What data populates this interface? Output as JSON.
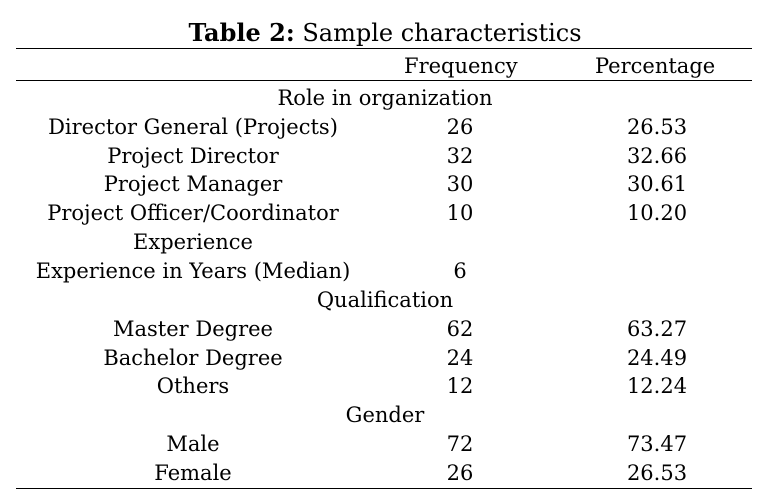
{
  "table": {
    "caption_bold": "Table 2:",
    "caption_rest": " Sample characteristics",
    "headers": {
      "frequency": "Frequency",
      "percentage": "Percentage"
    },
    "sections": [
      {
        "title": "Role in organization",
        "rows": [
          {
            "label": "Director General (Projects)",
            "frequency": "26",
            "percentage": "26.53"
          },
          {
            "label": "Project Director",
            "frequency": "32",
            "percentage": "32.66"
          },
          {
            "label": "Project Manager",
            "frequency": "30",
            "percentage": "30.61"
          },
          {
            "label": "Project Officer/Coordinator",
            "frequency": "10",
            "percentage": "10.20"
          }
        ]
      },
      {
        "title": "Experience",
        "rows": [
          {
            "label": "Experience in Years (Median)",
            "frequency": "6",
            "percentage": ""
          }
        ]
      },
      {
        "title": "Qualification",
        "rows": [
          {
            "label": "Master Degree",
            "frequency": "62",
            "percentage": "63.27"
          },
          {
            "label": "Bachelor Degree",
            "frequency": "24",
            "percentage": "24.49"
          },
          {
            "label": "Others",
            "frequency": "12",
            "percentage": "12.24"
          }
        ]
      },
      {
        "title": "Gender",
        "rows": [
          {
            "label": "Male",
            "frequency": "72",
            "percentage": "73.47"
          },
          {
            "label": "Female",
            "frequency": "26",
            "percentage": "26.53"
          }
        ]
      }
    ]
  }
}
